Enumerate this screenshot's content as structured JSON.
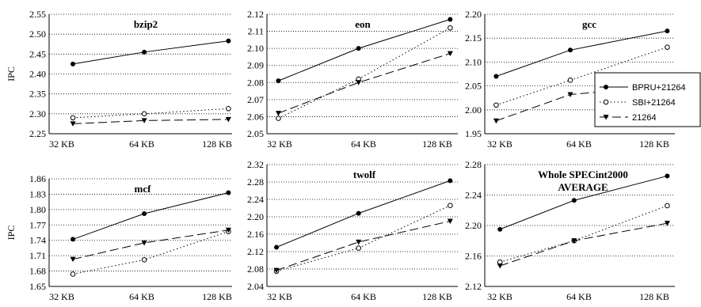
{
  "chart_data": [
    {
      "type": "line",
      "title": [
        "bzip2"
      ],
      "ylabel": "IPC",
      "categories": [
        "32 KB",
        "64 KB",
        "128 KB"
      ],
      "ylim": [
        2.25,
        2.55
      ],
      "yticks": [
        2.25,
        2.3,
        2.35,
        2.4,
        2.45,
        2.5,
        2.55
      ],
      "ydecimals": 2,
      "series": [
        {
          "name": "BPRU+21264",
          "values": [
            2.425,
            2.455,
            2.483
          ]
        },
        {
          "name": "SBI+21264",
          "values": [
            2.29,
            2.3,
            2.313
          ]
        },
        {
          "name": "21264",
          "values": [
            2.275,
            2.283,
            2.286
          ]
        }
      ]
    },
    {
      "type": "line",
      "title": [
        "eon"
      ],
      "ylabel": "",
      "categories": [
        "32 KB",
        "64 KB",
        "128 KB"
      ],
      "ylim": [
        2.05,
        2.12
      ],
      "yticks": [
        2.05,
        2.06,
        2.07,
        2.08,
        2.09,
        2.1,
        2.11,
        2.12
      ],
      "ydecimals": 2,
      "series": [
        {
          "name": "BPRU+21264",
          "values": [
            2.081,
            2.1,
            2.117
          ]
        },
        {
          "name": "SBI+21264",
          "values": [
            2.059,
            2.082,
            2.112
          ]
        },
        {
          "name": "21264",
          "values": [
            2.062,
            2.08,
            2.097
          ]
        }
      ]
    },
    {
      "type": "line",
      "title": [
        "gcc"
      ],
      "ylabel": "",
      "categories": [
        "32 KB",
        "64 KB",
        "128 KB"
      ],
      "ylim": [
        1.95,
        2.2
      ],
      "yticks": [
        1.95,
        2.0,
        2.05,
        2.1,
        2.15,
        2.2
      ],
      "ydecimals": 2,
      "series": [
        {
          "name": "BPRU+21264",
          "values": [
            2.07,
            2.125,
            2.165
          ]
        },
        {
          "name": "SBI+21264",
          "values": [
            2.01,
            2.062,
            2.131
          ]
        },
        {
          "name": "21264",
          "values": [
            1.977,
            2.032,
            2.05
          ]
        }
      ]
    },
    {
      "type": "line",
      "title": [
        "mcf"
      ],
      "ylabel": "IPC",
      "categories": [
        "32 KB",
        "64 KB",
        "128 KB"
      ],
      "ylim": [
        1.65,
        1.86
      ],
      "yticks": [
        1.65,
        1.68,
        1.71,
        1.74,
        1.77,
        1.8,
        1.83,
        1.86
      ],
      "ydecimals": 2,
      "series": [
        {
          "name": "BPRU+21264",
          "values": [
            1.742,
            1.792,
            1.833
          ]
        },
        {
          "name": "SBI+21264",
          "values": [
            1.674,
            1.702,
            1.757
          ]
        },
        {
          "name": "21264",
          "values": [
            1.703,
            1.735,
            1.76
          ]
        }
      ]
    },
    {
      "type": "line",
      "title": [
        "twolf"
      ],
      "ylabel": "",
      "categories": [
        "32 KB",
        "64 KB",
        "128 KB"
      ],
      "ylim": [
        2.04,
        2.32
      ],
      "yticks": [
        2.04,
        2.08,
        2.12,
        2.16,
        2.2,
        2.24,
        2.28,
        2.32
      ],
      "ydecimals": 2,
      "series": [
        {
          "name": "BPRU+21264",
          "values": [
            2.13,
            2.208,
            2.283
          ]
        },
        {
          "name": "SBI+21264",
          "values": [
            2.075,
            2.128,
            2.226
          ]
        },
        {
          "name": "21264",
          "values": [
            2.077,
            2.142,
            2.19
          ]
        }
      ]
    },
    {
      "type": "line",
      "title": [
        "Whole SPECint2000",
        "AVERAGE"
      ],
      "ylabel": "",
      "categories": [
        "32 KB",
        "64 KB",
        "128 KB"
      ],
      "ylim": [
        2.12,
        2.28
      ],
      "yticks": [
        2.12,
        2.16,
        2.2,
        2.24,
        2.28
      ],
      "ydecimals": 2,
      "series": [
        {
          "name": "BPRU+21264",
          "values": [
            2.195,
            2.233,
            2.265
          ]
        },
        {
          "name": "SBI+21264",
          "values": [
            2.152,
            2.18,
            2.226
          ]
        },
        {
          "name": "21264",
          "values": [
            2.147,
            2.18,
            2.203
          ]
        }
      ]
    }
  ],
  "legend": {
    "placement": "right",
    "entries": [
      {
        "label": "BPRU+21264",
        "marker": "filled-circle",
        "line": "solid"
      },
      {
        "label": "SBI+21264",
        "marker": "open-circle",
        "line": "dotted"
      },
      {
        "label": "21264",
        "marker": "filled-triangle-down",
        "line": "dashed"
      }
    ]
  }
}
